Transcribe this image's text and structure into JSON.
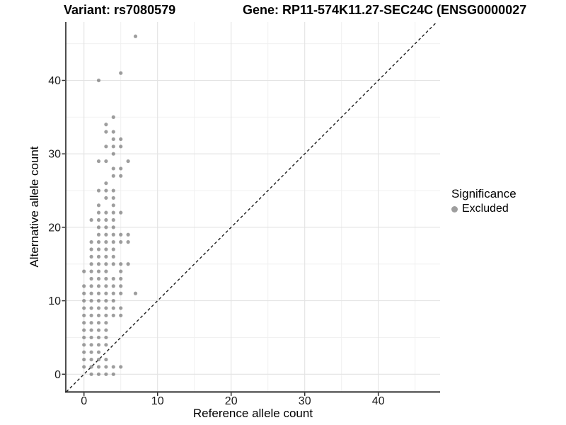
{
  "titles": {
    "variant": "Variant: rs7080579",
    "gene": "Gene: RP11-574K11.27-SEC24C (ENSG0000027"
  },
  "legend": {
    "title": "Significance",
    "items": [
      {
        "label": "Excluded",
        "color": "#9e9e9e"
      }
    ]
  },
  "colors": {
    "point_fill": "#6e6e6e",
    "point_opacity": 0.67,
    "grid_major": "#e3e3e3",
    "grid_minor": "#efefef",
    "axis_line": "#2e2e2e",
    "identity_line": "#1a1a1a",
    "tick_label": "#1a1a1a"
  },
  "chart_data": {
    "type": "scatter",
    "title": "Variant: rs7080579 / Gene: RP11-574K11.27-SEC24C (ENSG0000027",
    "xlabel": "Reference allele count",
    "ylabel": "Alternative allele count",
    "xlim": [
      -2.5,
      48.4
    ],
    "ylim": [
      -2.4,
      47.9
    ],
    "x_ticks": [
      0,
      10,
      20,
      30,
      40
    ],
    "y_ticks": [
      0,
      10,
      20,
      30,
      40
    ],
    "x_minor": [
      5,
      15,
      25,
      35,
      45
    ],
    "y_minor": [
      5,
      15,
      25,
      35,
      45
    ],
    "grid": true,
    "legend_position": "right",
    "identity_line": {
      "shown": true,
      "style": "dashed",
      "slope": 1,
      "intercept": 0
    },
    "series": [
      {
        "name": "Excluded",
        "color": "#9e9e9e",
        "points": [
          [
            1,
            0
          ],
          [
            2,
            0
          ],
          [
            3,
            0
          ],
          [
            4,
            0
          ],
          [
            0,
            1
          ],
          [
            1,
            1
          ],
          [
            2,
            1
          ],
          [
            3,
            1
          ],
          [
            4,
            1
          ],
          [
            5,
            1
          ],
          [
            0,
            2
          ],
          [
            1,
            2
          ],
          [
            2,
            2
          ],
          [
            3,
            2
          ],
          [
            0,
            3
          ],
          [
            1,
            3
          ],
          [
            2,
            3
          ],
          [
            0,
            4
          ],
          [
            1,
            4
          ],
          [
            2,
            4
          ],
          [
            3,
            4
          ],
          [
            0,
            5
          ],
          [
            1,
            5
          ],
          [
            2,
            5
          ],
          [
            3,
            5
          ],
          [
            0,
            6
          ],
          [
            1,
            6
          ],
          [
            2,
            6
          ],
          [
            3,
            6
          ],
          [
            0,
            7
          ],
          [
            1,
            7
          ],
          [
            2,
            7
          ],
          [
            3,
            7
          ],
          [
            0,
            8
          ],
          [
            1,
            8
          ],
          [
            2,
            8
          ],
          [
            3,
            8
          ],
          [
            4,
            8
          ],
          [
            5,
            8
          ],
          [
            0,
            9
          ],
          [
            1,
            9
          ],
          [
            2,
            9
          ],
          [
            3,
            9
          ],
          [
            4,
            9
          ],
          [
            5,
            9
          ],
          [
            0,
            10
          ],
          [
            1,
            10
          ],
          [
            2,
            10
          ],
          [
            3,
            10
          ],
          [
            4,
            10
          ],
          [
            0,
            11
          ],
          [
            1,
            11
          ],
          [
            2,
            11
          ],
          [
            3,
            11
          ],
          [
            4,
            11
          ],
          [
            5,
            11
          ],
          [
            7,
            11
          ],
          [
            0,
            12
          ],
          [
            1,
            12
          ],
          [
            2,
            12
          ],
          [
            3,
            12
          ],
          [
            4,
            12
          ],
          [
            5,
            12
          ],
          [
            1,
            13
          ],
          [
            2,
            13
          ],
          [
            3,
            13
          ],
          [
            4,
            13
          ],
          [
            5,
            13
          ],
          [
            0,
            14
          ],
          [
            1,
            14
          ],
          [
            2,
            14
          ],
          [
            3,
            14
          ],
          [
            5,
            14
          ],
          [
            1,
            15
          ],
          [
            2,
            15
          ],
          [
            3,
            15
          ],
          [
            4,
            15
          ],
          [
            5,
            15
          ],
          [
            6,
            15
          ],
          [
            1,
            16
          ],
          [
            2,
            16
          ],
          [
            3,
            16
          ],
          [
            4,
            16
          ],
          [
            1,
            17
          ],
          [
            2,
            17
          ],
          [
            3,
            17
          ],
          [
            4,
            17
          ],
          [
            1,
            18
          ],
          [
            2,
            18
          ],
          [
            3,
            18
          ],
          [
            4,
            18
          ],
          [
            5,
            18
          ],
          [
            6,
            18
          ],
          [
            2,
            19
          ],
          [
            3,
            19
          ],
          [
            4,
            19
          ],
          [
            5,
            19
          ],
          [
            6,
            19
          ],
          [
            2,
            20
          ],
          [
            3,
            20
          ],
          [
            4,
            20
          ],
          [
            1,
            21
          ],
          [
            2,
            21
          ],
          [
            3,
            21
          ],
          [
            4,
            21
          ],
          [
            2,
            22
          ],
          [
            3,
            22
          ],
          [
            4,
            22
          ],
          [
            5,
            22
          ],
          [
            2,
            23
          ],
          [
            4,
            23
          ],
          [
            3,
            24
          ],
          [
            4,
            24
          ],
          [
            2,
            25
          ],
          [
            3,
            25
          ],
          [
            4,
            25
          ],
          [
            3,
            26
          ],
          [
            4,
            27
          ],
          [
            5,
            27
          ],
          [
            4,
            28
          ],
          [
            5,
            28
          ],
          [
            2,
            29
          ],
          [
            3,
            29
          ],
          [
            6,
            29
          ],
          [
            4,
            30
          ],
          [
            3,
            31
          ],
          [
            4,
            31
          ],
          [
            5,
            31
          ],
          [
            4,
            32
          ],
          [
            5,
            32
          ],
          [
            3,
            33
          ],
          [
            4,
            33
          ],
          [
            3,
            34
          ],
          [
            4,
            35
          ],
          [
            2,
            40
          ],
          [
            5,
            41
          ],
          [
            7,
            46
          ]
        ]
      }
    ]
  }
}
